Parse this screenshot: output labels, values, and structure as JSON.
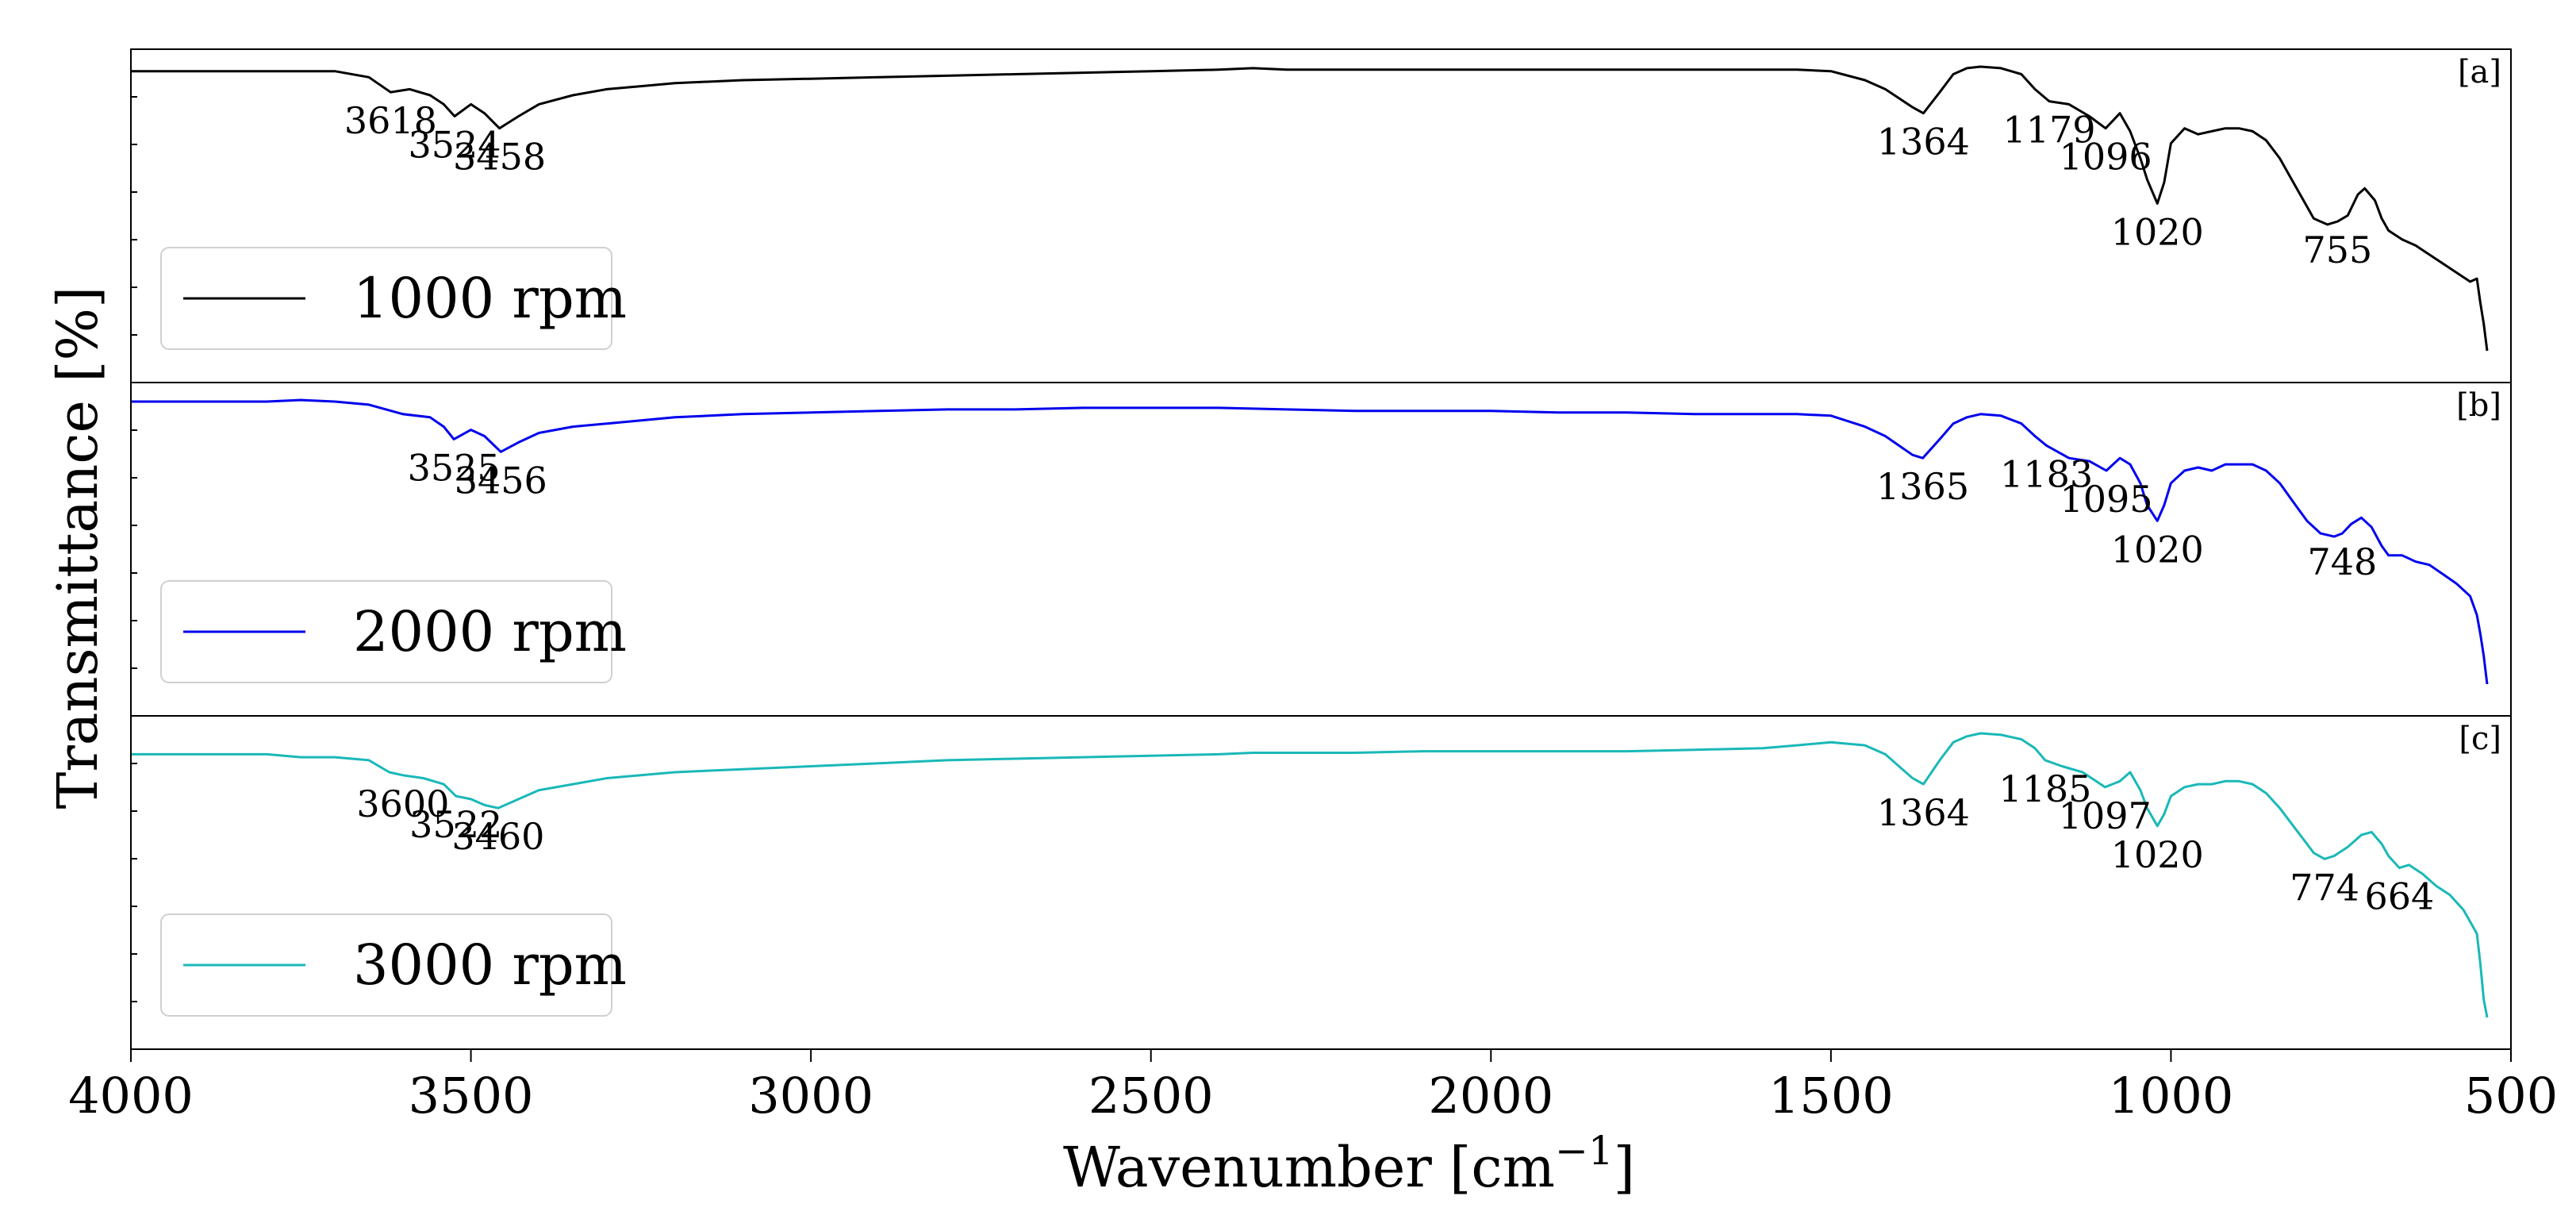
{
  "chart_data": {
    "type": "line",
    "xlabel": "Wavenumber [cm",
    "xlabel_sup": "−1",
    "xlabel_close": "]",
    "ylabel": "Transmittance [%]",
    "xlim": [
      4000,
      500
    ],
    "x_reversed": true,
    "x_ticks": [
      4000,
      3500,
      3000,
      2500,
      2000,
      1500,
      1000,
      500
    ],
    "y_ticks_visible": false,
    "legend_location": "lower-left",
    "panels": [
      {
        "tag": "[a]",
        "legend": "1000 rpm",
        "color": "#000000",
        "x": [
          4000,
          3900,
          3800,
          3700,
          3650,
          3618,
          3590,
          3560,
          3540,
          3524,
          3500,
          3480,
          3458,
          3430,
          3400,
          3350,
          3300,
          3250,
          3200,
          3100,
          3000,
          2900,
          2800,
          2700,
          2600,
          2500,
          2400,
          2350,
          2300,
          2200,
          2100,
          2000,
          1900,
          1800,
          1700,
          1600,
          1550,
          1500,
          1450,
          1420,
          1400,
          1380,
          1364,
          1340,
          1320,
          1300,
          1280,
          1250,
          1220,
          1200,
          1179,
          1150,
          1120,
          1096,
          1075,
          1060,
          1045,
          1035,
          1020,
          1010,
          1000,
          980,
          960,
          940,
          920,
          900,
          880,
          860,
          840,
          820,
          800,
          790,
          770,
          755,
          740,
          725,
          715,
          700,
          690,
          680,
          660,
          640,
          620,
          600,
          580,
          560,
          550,
          545,
          540,
          535
        ],
        "y": [
          99,
          99,
          99,
          99,
          97,
          92,
          93,
          91,
          88,
          84,
          88,
          85,
          80,
          84,
          88,
          91,
          93,
          94,
          95,
          96,
          96.5,
          97,
          97.5,
          98,
          98.5,
          99,
          99.5,
          100,
          99.5,
          99.5,
          99.5,
          99.5,
          99.5,
          99.5,
          99.5,
          99.5,
          99.5,
          99,
          96,
          93,
          90,
          87,
          85,
          92,
          98,
          100,
          100.5,
          100,
          98,
          93,
          89,
          88,
          84,
          80,
          85,
          79,
          70,
          63,
          55,
          62,
          75,
          80,
          78,
          79,
          80,
          80,
          79,
          76,
          70,
          62,
          54,
          50,
          48,
          49,
          51,
          58,
          60,
          56,
          50,
          46,
          43,
          41,
          38,
          35,
          32,
          29,
          30,
          22,
          15,
          6
        ]
      },
      {
        "tag": "[b]",
        "legend": "2000 rpm",
        "color": "#0000ee",
        "x": [
          4000,
          3900,
          3800,
          3750,
          3700,
          3650,
          3600,
          3560,
          3540,
          3525,
          3500,
          3480,
          3456,
          3430,
          3400,
          3350,
          3300,
          3250,
          3200,
          3100,
          3000,
          2900,
          2800,
          2700,
          2600,
          2500,
          2400,
          2300,
          2200,
          2100,
          2000,
          1900,
          1800,
          1700,
          1600,
          1550,
          1500,
          1450,
          1420,
          1400,
          1380,
          1365,
          1340,
          1320,
          1300,
          1280,
          1250,
          1220,
          1200,
          1183,
          1150,
          1120,
          1095,
          1075,
          1060,
          1045,
          1035,
          1020,
          1010,
          1000,
          980,
          960,
          940,
          920,
          900,
          880,
          860,
          840,
          820,
          800,
          780,
          760,
          748,
          735,
          720,
          705,
          690,
          680,
          660,
          640,
          620,
          600,
          580,
          560,
          550,
          545,
          540,
          535
        ],
        "y": [
          96,
          96,
          96,
          96.5,
          96,
          95,
          92,
          91,
          88,
          84,
          87,
          85,
          80,
          83,
          86,
          88,
          89,
          90,
          91,
          92,
          92.5,
          93,
          93.5,
          93.5,
          94,
          94,
          94,
          93.5,
          93,
          93,
          93,
          92.5,
          92.5,
          92,
          92,
          92,
          91.5,
          88,
          85,
          82,
          79,
          78,
          84,
          89,
          91,
          92,
          91.5,
          89,
          85,
          82,
          78,
          77,
          74,
          78,
          76,
          70,
          63,
          58,
          63,
          70,
          74,
          75,
          74,
          76,
          76,
          76,
          74,
          70,
          64,
          58,
          54,
          53,
          54,
          57,
          59,
          56,
          50,
          47,
          47,
          45,
          44,
          41,
          38,
          34,
          28,
          22,
          15,
          6
        ]
      },
      {
        "tag": "[c]",
        "legend": "3000 rpm",
        "color": "#1ab8b8",
        "x": [
          4000,
          3900,
          3800,
          3750,
          3700,
          3650,
          3620,
          3600,
          3570,
          3540,
          3522,
          3500,
          3480,
          3460,
          3430,
          3400,
          3350,
          3300,
          3250,
          3200,
          3100,
          3000,
          2900,
          2800,
          2700,
          2600,
          2500,
          2400,
          2350,
          2300,
          2200,
          2100,
          2000,
          1900,
          1800,
          1700,
          1600,
          1550,
          1500,
          1450,
          1420,
          1400,
          1380,
          1364,
          1340,
          1320,
          1300,
          1280,
          1250,
          1220,
          1200,
          1185,
          1160,
          1130,
          1110,
          1097,
          1075,
          1060,
          1045,
          1035,
          1020,
          1010,
          1000,
          980,
          960,
          940,
          920,
          900,
          880,
          860,
          840,
          820,
          800,
          790,
          774,
          760,
          740,
          720,
          705,
          690,
          680,
          664,
          650,
          630,
          610,
          590,
          570,
          560,
          550,
          545,
          540,
          535
        ],
        "y": [
          90,
          90,
          90,
          89,
          89,
          88,
          84,
          83,
          82,
          80,
          76,
          75,
          73,
          72,
          75,
          78,
          80,
          82,
          83,
          84,
          85,
          86,
          87,
          88,
          88.5,
          89,
          89.5,
          90,
          90.5,
          90.5,
          90.5,
          91,
          91,
          91,
          91,
          91.5,
          92,
          93,
          94,
          93,
          90,
          86,
          82,
          80,
          88,
          94,
          96,
          97,
          96.5,
          95,
          92,
          88,
          86,
          84,
          81,
          79,
          81,
          84,
          78,
          72,
          66,
          70,
          76,
          79,
          80,
          80,
          81,
          81,
          80,
          77,
          72,
          66,
          60,
          57,
          55,
          56,
          59,
          63,
          64,
          60,
          56,
          52,
          53,
          50,
          46,
          43,
          38,
          34,
          30,
          20,
          8,
          2
        ]
      }
    ],
    "annotations": [
      {
        "panel": 0,
        "text": "3618",
        "x": 3618
      },
      {
        "panel": 0,
        "text": "3524",
        "x": 3524
      },
      {
        "panel": 0,
        "text": "3458",
        "x": 3458
      },
      {
        "panel": 0,
        "text": "1364",
        "x": 1364
      },
      {
        "panel": 0,
        "text": "1179",
        "x": 1179
      },
      {
        "panel": 0,
        "text": "1096",
        "x": 1096
      },
      {
        "panel": 0,
        "text": "1020",
        "x": 1020
      },
      {
        "panel": 0,
        "text": "755",
        "x": 755
      },
      {
        "panel": 1,
        "text": "3525",
        "x": 3525
      },
      {
        "panel": 1,
        "text": "3456",
        "x": 3456
      },
      {
        "panel": 1,
        "text": "1365",
        "x": 1365
      },
      {
        "panel": 1,
        "text": "1183",
        "x": 1183
      },
      {
        "panel": 1,
        "text": "1095",
        "x": 1095
      },
      {
        "panel": 1,
        "text": "1020",
        "x": 1020
      },
      {
        "panel": 1,
        "text": "748",
        "x": 748
      },
      {
        "panel": 2,
        "text": "3600",
        "x": 3600
      },
      {
        "panel": 2,
        "text": "3522",
        "x": 3522
      },
      {
        "panel": 2,
        "text": "3460",
        "x": 3460
      },
      {
        "panel": 2,
        "text": "1364",
        "x": 1364
      },
      {
        "panel": 2,
        "text": "1185",
        "x": 1185
      },
      {
        "panel": 2,
        "text": "1097",
        "x": 1097
      },
      {
        "panel": 2,
        "text": "1020",
        "x": 1020
      },
      {
        "panel": 2,
        "text": "774",
        "x": 774
      },
      {
        "panel": 2,
        "text": "664",
        "x": 664
      }
    ]
  }
}
